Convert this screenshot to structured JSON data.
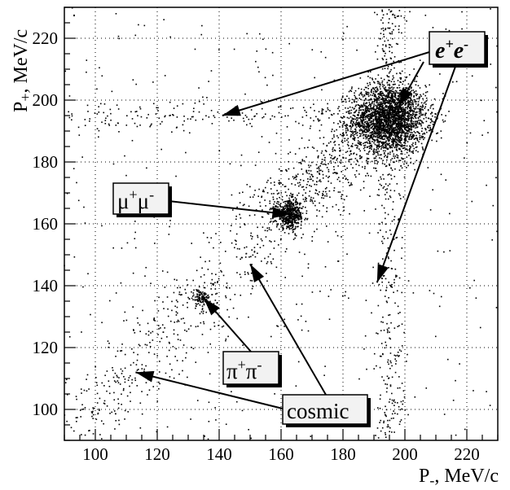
{
  "chart_data": {
    "type": "scatter",
    "xlabel": "P-, MeV/c",
    "ylabel": "P+, MeV/c",
    "xlabel_main": "P",
    "xlabel_sub": "-",
    "xlabel_unit": ", MeV/c",
    "ylabel_main": "P",
    "ylabel_sub": "+",
    "ylabel_unit": ", MeV/c",
    "xlim": [
      90,
      230
    ],
    "ylim": [
      90,
      230
    ],
    "x_ticks": [
      100,
      120,
      140,
      160,
      180,
      200,
      220
    ],
    "y_ticks": [
      100,
      120,
      140,
      160,
      180,
      200,
      220
    ],
    "grid": true,
    "clusters": [
      {
        "label": "e+e-",
        "center": [
          195,
          194
        ],
        "spread": [
          6,
          5.5
        ]
      },
      {
        "label": "μ+μ-",
        "center": [
          163,
          163
        ],
        "spread": [
          2.2,
          2.2
        ]
      },
      {
        "label": "π+π-",
        "center": [
          134,
          136
        ],
        "spread": [
          1.6,
          1.3
        ]
      }
    ],
    "annotations": [
      {
        "name": "ee",
        "text_main": "e",
        "sup1": "+",
        "text_main2": "e",
        "sup2": "-",
        "targets": [
          [
            141,
            195
          ],
          [
            198,
            198
          ],
          [
            191,
            141
          ]
        ]
      },
      {
        "name": "mumu",
        "text_main": "μ",
        "sup1": "+",
        "text_main2": "μ",
        "sup2": "-",
        "targets": [
          [
            163,
            163
          ]
        ]
      },
      {
        "name": "pipi",
        "text_main": "π",
        "sup1": "+",
        "text_main2": "π",
        "sup2": "-",
        "targets": [
          [
            135,
            136
          ]
        ]
      },
      {
        "name": "cosmic",
        "text": "cosmic",
        "targets": [
          [
            113,
            112
          ],
          [
            150,
            147
          ]
        ]
      }
    ]
  }
}
